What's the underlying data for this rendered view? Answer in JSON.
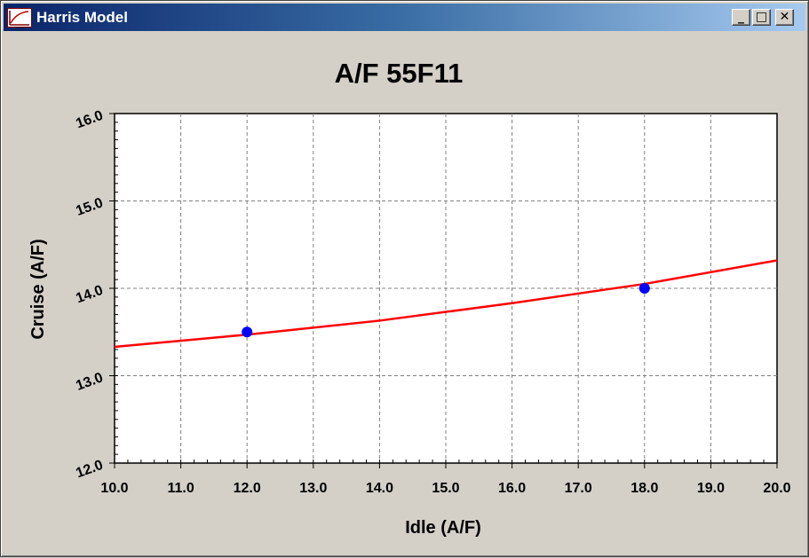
{
  "window": {
    "title": "Harris Model",
    "controls": {
      "minimize": "_",
      "maximize": "□",
      "close": "✕"
    },
    "icon": "chart-app-icon"
  },
  "chart_data": {
    "type": "scatter",
    "title": "A/F 55F11",
    "xlabel": "Idle (A/F)",
    "ylabel": "Cruise (A/F)",
    "xlim": [
      10.0,
      20.0
    ],
    "ylim": [
      12.0,
      16.0
    ],
    "x_ticks": [
      "10.0",
      "11.0",
      "12.0",
      "13.0",
      "14.0",
      "15.0",
      "16.0",
      "17.0",
      "18.0",
      "19.0",
      "20.0"
    ],
    "y_ticks": [
      "12.0",
      "13.0",
      "14.0",
      "15.0",
      "16.0"
    ],
    "grid": true,
    "colors": {
      "points": "#0000ff",
      "fit": "#ff0000",
      "plot_bg": "#ffffff",
      "grid": "#808080"
    },
    "series": [
      {
        "type": "scatter",
        "x": [
          12.0,
          18.0
        ],
        "y": [
          13.5,
          14.0
        ]
      },
      {
        "type": "line",
        "x": [
          10.0,
          12.0,
          14.0,
          16.0,
          18.0,
          20.0
        ],
        "y": [
          13.33,
          13.47,
          13.63,
          13.83,
          14.05,
          14.32
        ]
      }
    ]
  }
}
